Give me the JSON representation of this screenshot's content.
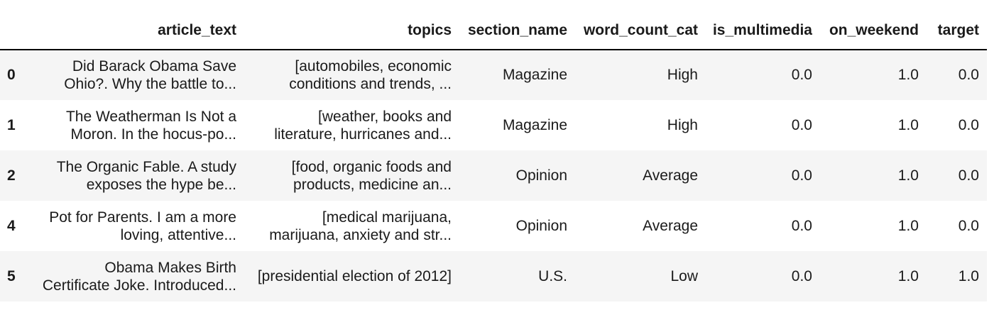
{
  "table": {
    "columns": [
      "",
      "article_text",
      "topics",
      "section_name",
      "word_count_cat",
      "is_multimedia",
      "on_weekend",
      "target"
    ],
    "rows": [
      {
        "index": "0",
        "article_text": [
          "Did Barack Obama Save",
          "Ohio?. Why the battle to..."
        ],
        "topics": [
          "[automobiles, economic",
          "conditions and trends, ..."
        ],
        "section_name": "Magazine",
        "word_count_cat": "High",
        "is_multimedia": "0.0",
        "on_weekend": "1.0",
        "target": "0.0"
      },
      {
        "index": "1",
        "article_text": [
          "The Weatherman Is Not a",
          "Moron. In the hocus-po..."
        ],
        "topics": [
          "[weather, books and",
          "literature, hurricanes and..."
        ],
        "section_name": "Magazine",
        "word_count_cat": "High",
        "is_multimedia": "0.0",
        "on_weekend": "1.0",
        "target": "0.0"
      },
      {
        "index": "2",
        "article_text": [
          "The Organic Fable. A study",
          "exposes the hype be..."
        ],
        "topics": [
          "[food, organic foods and",
          "products, medicine an..."
        ],
        "section_name": "Opinion",
        "word_count_cat": "Average",
        "is_multimedia": "0.0",
        "on_weekend": "1.0",
        "target": "0.0"
      },
      {
        "index": "4",
        "article_text": [
          "Pot for Parents. I am a more",
          "loving, attentive..."
        ],
        "topics": [
          "[medical marijuana,",
          "marijuana, anxiety and str..."
        ],
        "section_name": "Opinion",
        "word_count_cat": "Average",
        "is_multimedia": "0.0",
        "on_weekend": "1.0",
        "target": "0.0"
      },
      {
        "index": "5",
        "article_text": [
          "Obama Makes Birth",
          "Certificate Joke. Introduced..."
        ],
        "topics": [
          "[presidential election of 2012]"
        ],
        "section_name": "U.S.",
        "word_count_cat": "Low",
        "is_multimedia": "0.0",
        "on_weekend": "1.0",
        "target": "1.0"
      }
    ]
  },
  "colors": {
    "stripe": "#f5f5f5",
    "background": "#ffffff",
    "header_rule": "#000000"
  }
}
